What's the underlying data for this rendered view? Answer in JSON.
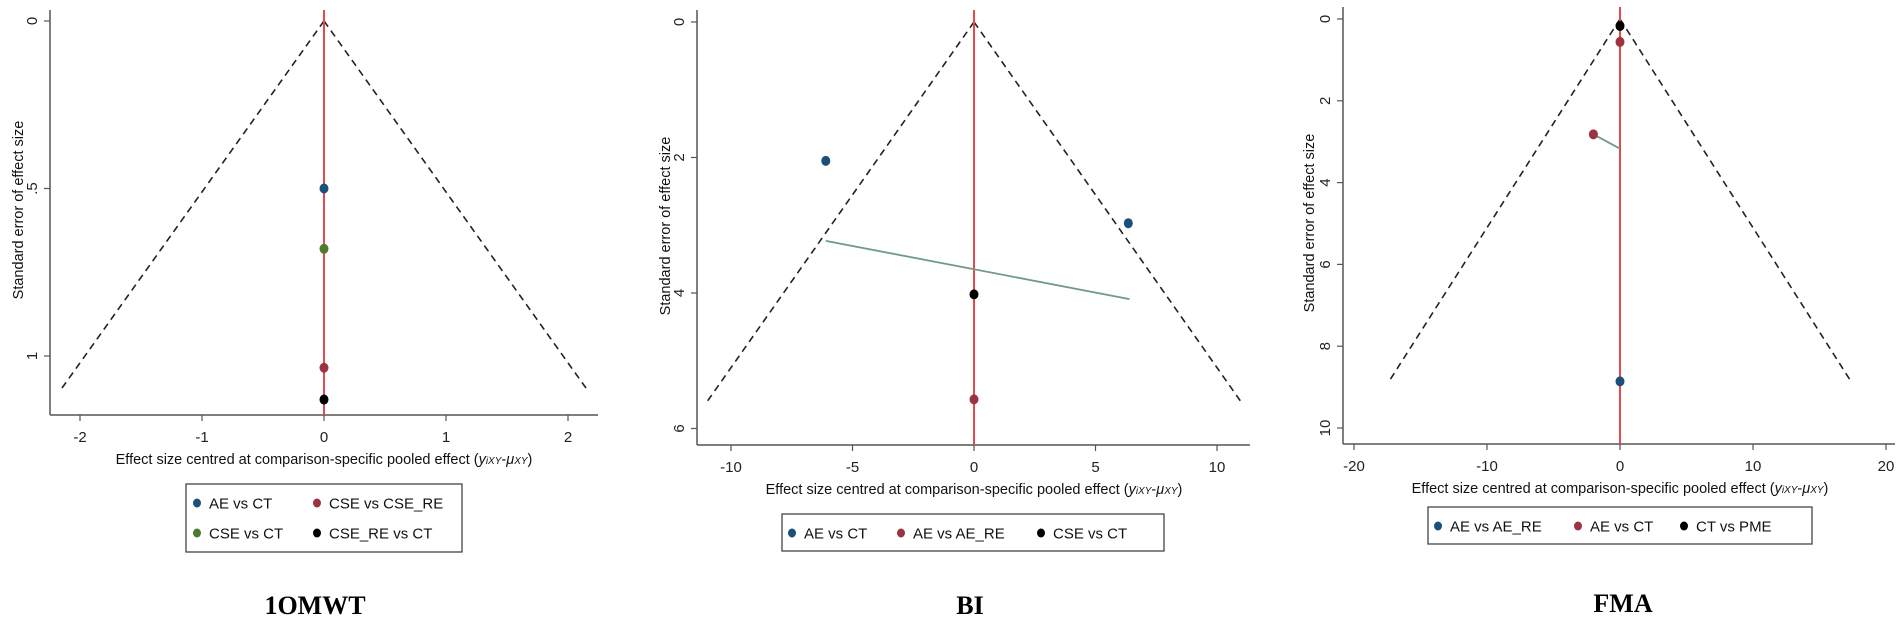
{
  "chart_data": [
    {
      "type": "scatter",
      "title": "1OMWT",
      "xlabel": "Effect size centred at comparison-specific pooled effect (",
      "xlabel_formula": {
        "y": "y",
        "y_sub": "iXY",
        "dash": "-",
        "mu": "μ",
        "mu_sub": "XY",
        "close": ")"
      },
      "ylabel": "Standard error of effect size",
      "y_reversed": true,
      "xticks": [
        -2,
        -1,
        0,
        1,
        2
      ],
      "xtick_labels": [
        "-2",
        "-1",
        "0",
        "1",
        "2"
      ],
      "yticks": [
        0,
        0.5,
        1
      ],
      "ytick_labels": [
        "0",
        ".5",
        "1"
      ],
      "reference_line_x": 0,
      "funnel_se_max": 1.1,
      "grid": false,
      "legend_position": "bottom",
      "series": [
        {
          "name": "AE vs CT",
          "color": "#1c4f7c",
          "points": [
            {
              "x": 0,
              "y": 0.5
            }
          ]
        },
        {
          "name": "CSE vs CSE_RE",
          "color": "#9b3341",
          "points": [
            {
              "x": 0,
              "y": 1.035
            }
          ]
        },
        {
          "name": "CSE vs CT",
          "color": "#4d7a2c",
          "points": [
            {
              "x": 0,
              "y": 0.68
            }
          ]
        },
        {
          "name": "CSE_RE vs CT",
          "color": "#000000",
          "points": [
            {
              "x": 0,
              "y": 1.13
            }
          ]
        }
      ],
      "fit_line": null
    },
    {
      "type": "scatter",
      "title": "BI",
      "xlabel": "Effect size centred at comparison-specific pooled effect (",
      "xlabel_formula": {
        "y": "y",
        "y_sub": "iXY",
        "dash": "-",
        "mu": "μ",
        "mu_sub": "XY",
        "close": ")"
      },
      "ylabel": "Standard error of effect size",
      "y_reversed": true,
      "xticks": [
        -10,
        -5,
        0,
        5,
        10
      ],
      "xtick_labels": [
        "-10",
        "-5",
        "0",
        "5",
        "10"
      ],
      "yticks": [
        0,
        2,
        4,
        6
      ],
      "ytick_labels": [
        "0",
        "2",
        "4",
        "6"
      ],
      "reference_line_x": 0,
      "funnel_se_max": 5.6,
      "grid": false,
      "legend_position": "bottom",
      "series": [
        {
          "name": "AE vs CT",
          "color": "#1c4f7c",
          "points": [
            {
              "x": -6.1,
              "y": 2.05
            },
            {
              "x": 6.35,
              "y": 2.97
            }
          ]
        },
        {
          "name": "AE vs AE_RE",
          "color": "#9b3341",
          "points": [
            {
              "x": 0,
              "y": 5.57
            }
          ]
        },
        {
          "name": "CSE vs CT",
          "color": "#000000",
          "points": [
            {
              "x": 0,
              "y": 4.02
            }
          ]
        }
      ],
      "fit_line": {
        "color": "#6f9a8a",
        "from": {
          "x": -6.1,
          "y": 3.23
        },
        "to": {
          "x": 6.4,
          "y": 4.09
        }
      }
    },
    {
      "type": "scatter",
      "title": "FMA",
      "xlabel": "Effect size centred at comparison-specific pooled effect (",
      "xlabel_formula": {
        "y": "y",
        "y_sub": "iXY",
        "dash": "-",
        "mu": "μ",
        "mu_sub": "XY",
        "close": ")"
      },
      "ylabel": "Standard error of effect size",
      "y_reversed": true,
      "xticks": [
        -20,
        -10,
        0,
        10,
        20
      ],
      "xtick_labels": [
        "-20",
        "-10",
        "0",
        "10",
        "20"
      ],
      "yticks": [
        0,
        2,
        4,
        6,
        8,
        10
      ],
      "ytick_labels": [
        "0",
        "2",
        "4",
        "6",
        "8",
        "10"
      ],
      "reference_line_x": 0,
      "funnel_se_max": 8.9,
      "grid": false,
      "legend_position": "bottom",
      "series": [
        {
          "name": "AE vs AE_RE",
          "color": "#1c4f7c",
          "points": [
            {
              "x": 0,
              "y": 8.86
            }
          ]
        },
        {
          "name": "AE vs CT",
          "color": "#9b3341",
          "points": [
            {
              "x": 0,
              "y": 0.56
            },
            {
              "x": -2.0,
              "y": 2.82
            }
          ]
        },
        {
          "name": "CT vs PME",
          "color": "#000000",
          "points": [
            {
              "x": 0,
              "y": 0.17
            }
          ]
        }
      ],
      "fit_line": {
        "color": "#6f9a8a",
        "from": {
          "x": -2.0,
          "y": 2.82
        },
        "to": {
          "x": 0,
          "y": 3.17
        }
      }
    }
  ],
  "colors": {
    "reference_line": "#e5484d",
    "funnel": "#222222",
    "axis": "#555555"
  }
}
